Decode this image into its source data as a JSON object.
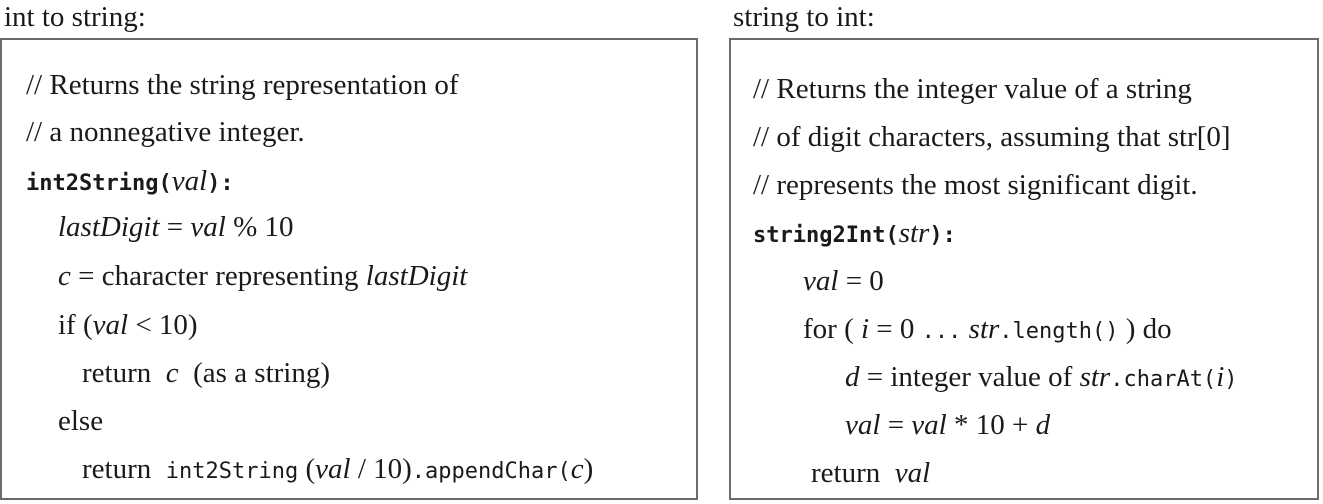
{
  "left": {
    "caption": "int to string:",
    "comment": [
      "// Returns the string representation of",
      "// a nonnegative integer."
    ],
    "signature": {
      "name": "int2String(",
      "param": "val",
      "close": "):"
    },
    "lines": [
      {
        "var": "lastDigit",
        "eq": " = ",
        "val": "val",
        "rest": " % 10"
      },
      {
        "var": "c",
        "eq": " = character representing ",
        "val": "lastDigit"
      },
      {
        "kw": "if (",
        "val": "val",
        "rest": " < 10)"
      },
      {
        "kw": "return  ",
        "val": "c",
        "rest": "  (as a string)"
      },
      {
        "kw": "else"
      },
      {
        "kw": "return  ",
        "call": "int2String",
        "open": " (",
        "val": "val",
        "rest": " / 10)",
        "method": ".appendChar(",
        "arg": "c",
        "close": ")"
      }
    ]
  },
  "right": {
    "caption": "string to int:",
    "comment": [
      "// Returns the integer value of a string",
      "// of digit characters, assuming that str[0]",
      "// represents the most significant digit."
    ],
    "signature": {
      "name": "string2Int(",
      "param": "str",
      "close": "):"
    },
    "lines": [
      {
        "var": "val",
        "rest": " = 0"
      },
      {
        "kw": "for ( ",
        "i": "i",
        "mid": " = 0 ",
        "dots": "...",
        "sp": " ",
        "str": "str",
        "method": ".length()",
        "rest": " ) do"
      },
      {
        "var": "d",
        "mid": " = integer value of ",
        "str": "str",
        "method": ".charAt(",
        "arg": "i",
        "close": ")"
      },
      {
        "var": "val",
        "mid": " = ",
        "val2": "val",
        "rest": " * 10 + ",
        "d": "d"
      },
      {
        "kw": "return  ",
        "val": "val"
      }
    ]
  }
}
